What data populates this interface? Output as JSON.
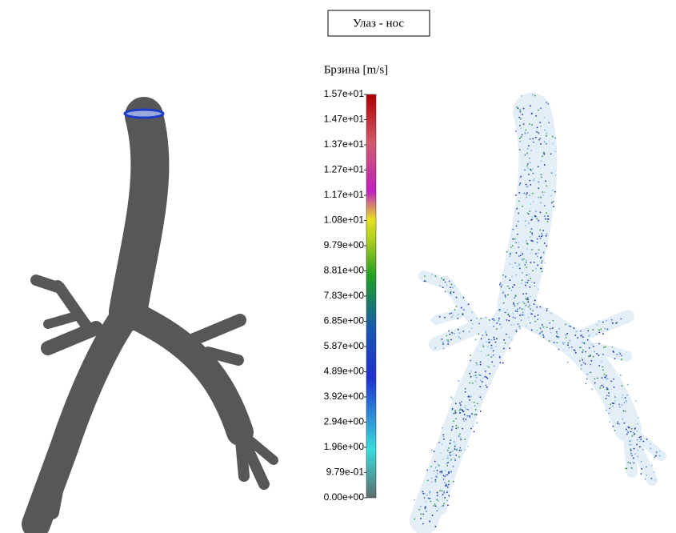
{
  "title": "Улаз - нос",
  "colorbar": {
    "title": "Брзина [m/s]",
    "ticks": [
      "1.57e+01",
      "1.47e+01",
      "1.37e+01",
      "1.27e+01",
      "1.17e+01",
      "1.08e+01",
      "9.79e+00",
      "8.81e+00",
      "7.83e+00",
      "6.85e+00",
      "5.87e+00",
      "4.89e+00",
      "3.92e+00",
      "2.94e+00",
      "1.96e+00",
      "9.79e-01",
      "0.00e+00"
    ]
  }
}
